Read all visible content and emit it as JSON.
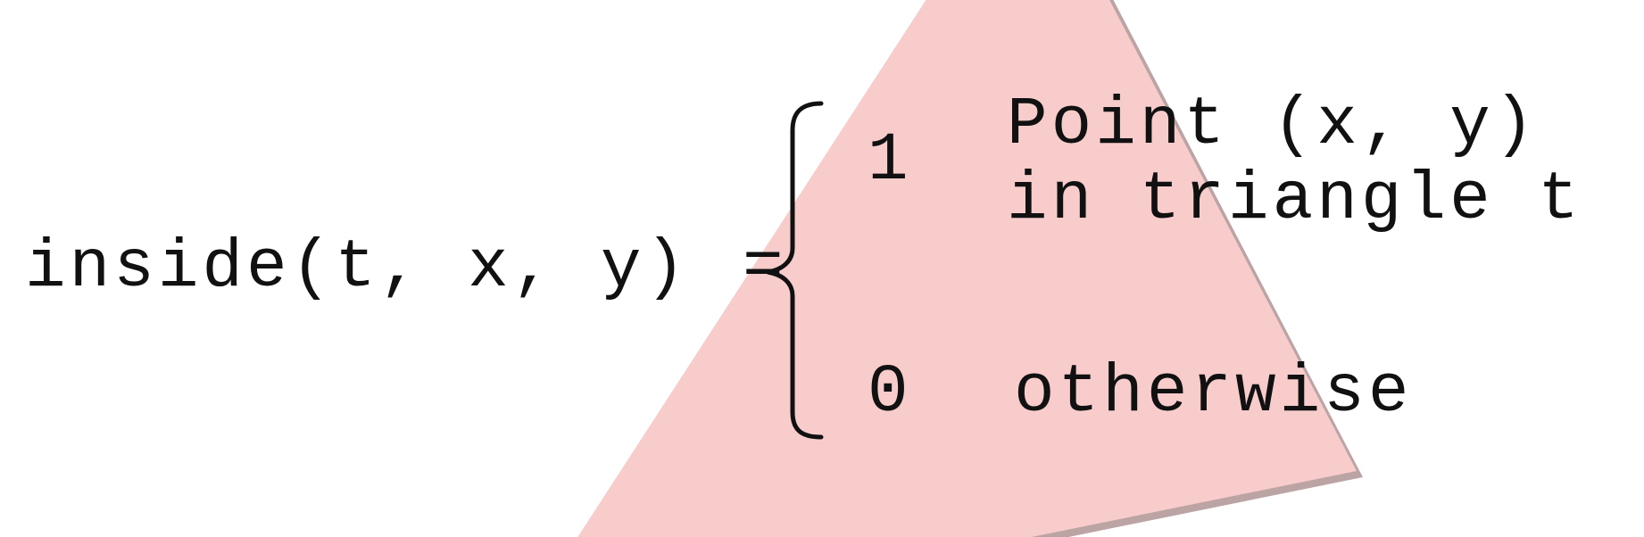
{
  "equation": {
    "lhs": "inside(t, x, y)",
    "equals": "=",
    "cases": [
      {
        "value": "1",
        "condition_lines": [
          "Point (x, y)",
          "in triangle t"
        ]
      },
      {
        "value": "0",
        "condition_lines": [
          "otherwise"
        ]
      }
    ]
  },
  "colors": {
    "triangle_fill": "#f9cccc",
    "triangle_edge": "#b59a9a",
    "text": "#111111"
  }
}
